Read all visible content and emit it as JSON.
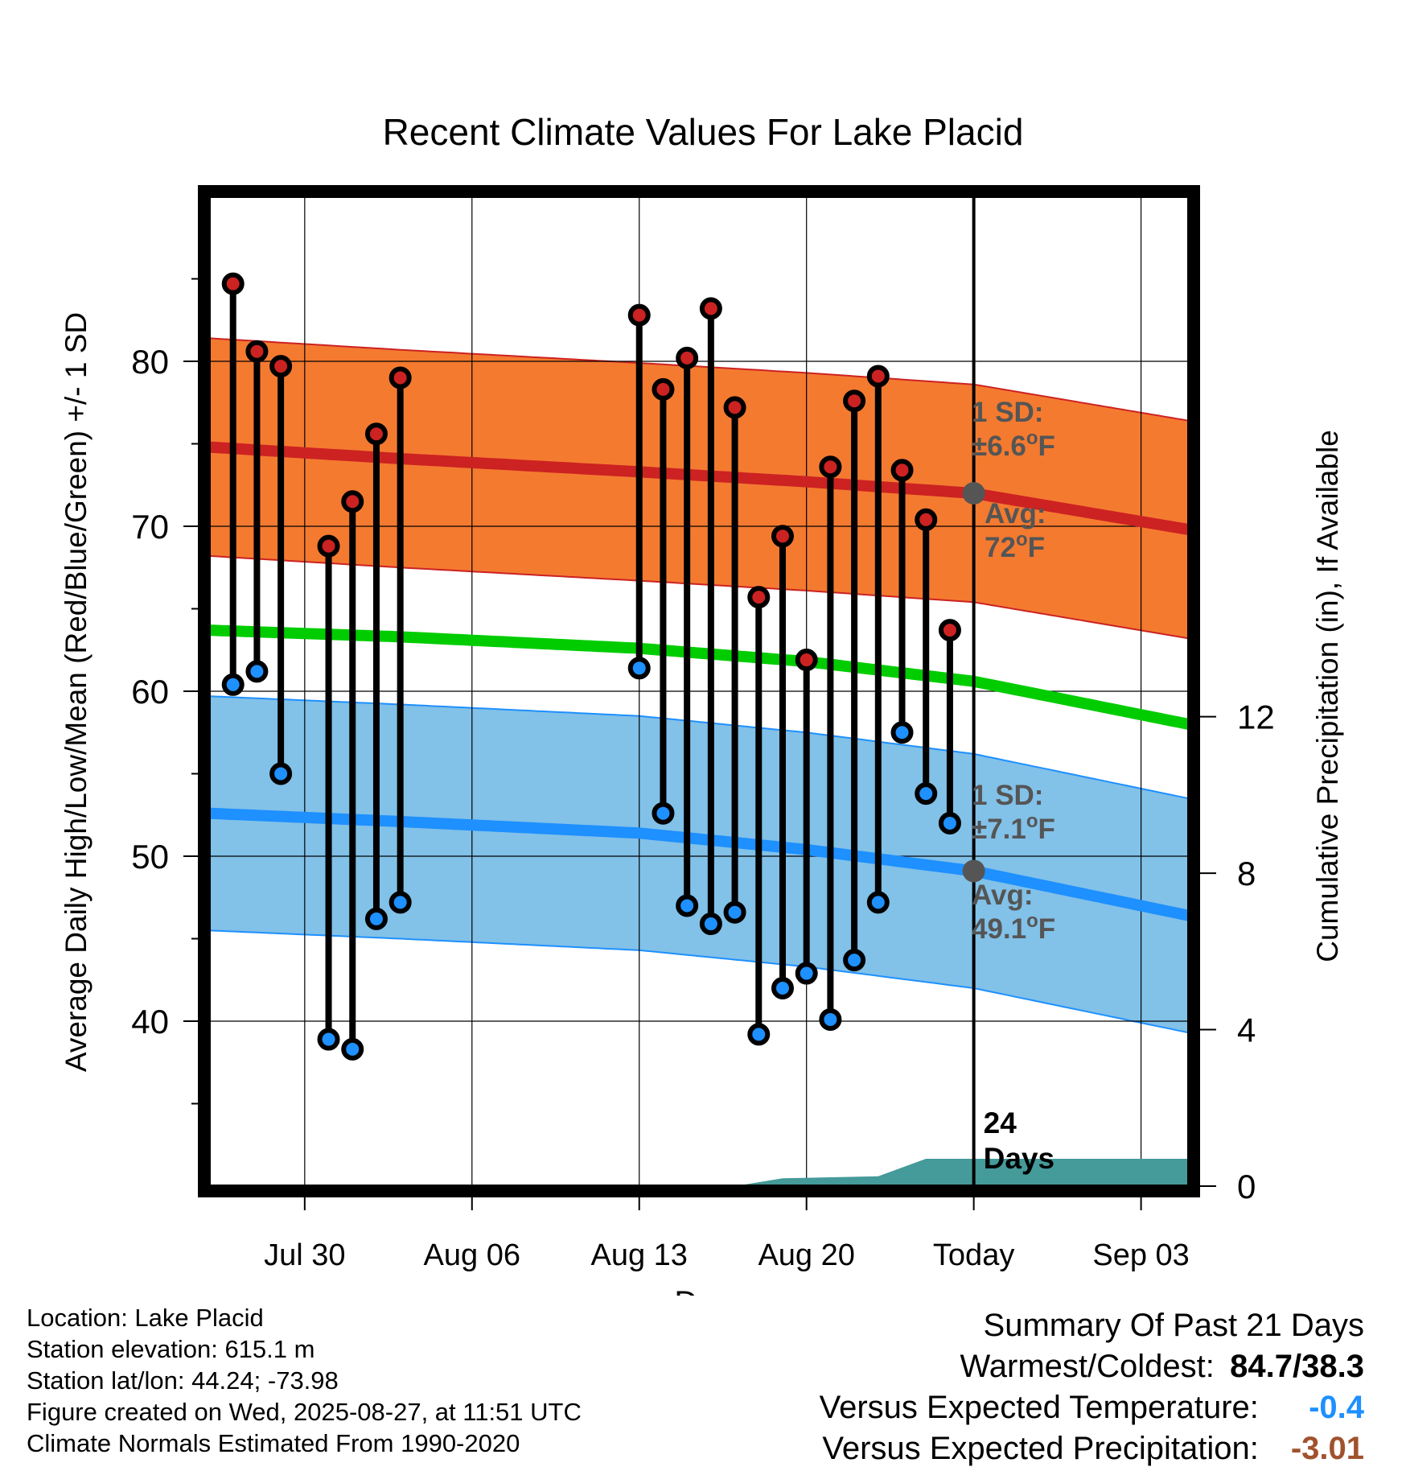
{
  "chart_data": {
    "type": "line",
    "title": "Recent Climate Values For Lake Placid",
    "xlabel": "Day",
    "ylabel": "Average Daily High/Low/Mean (Red/Blue/Green) +/- 1 SD",
    "ylabel_right": "Cumulative Precipitation (in), If Available",
    "ylim": [
      30,
      90
    ],
    "ylim_right": [
      0,
      25.3
    ],
    "xlim": [
      "2025-07-26",
      "2025-09-05"
    ],
    "x_ticks": [
      {
        "date": "2025-07-30",
        "label": "Jul 30"
      },
      {
        "date": "2025-08-06",
        "label": "Aug 06"
      },
      {
        "date": "2025-08-13",
        "label": "Aug 13"
      },
      {
        "date": "2025-08-20",
        "label": "Aug 20"
      },
      {
        "date": "2025-08-27",
        "label": "Today"
      },
      {
        "date": "2025-09-03",
        "label": "Sep 03"
      }
    ],
    "y_ticks": [
      40,
      50,
      60,
      70,
      80
    ],
    "y_ticks_right": [
      0,
      4,
      8,
      12
    ],
    "grid": true,
    "today": "2025-08-27",
    "days_label": "24\nDays",
    "observed": [
      {
        "date": "2025-07-27",
        "high": 84.7,
        "low": 60.4
      },
      {
        "date": "2025-07-28",
        "high": 80.6,
        "low": 61.2
      },
      {
        "date": "2025-07-29",
        "high": 79.7,
        "low": 55.0
      },
      {
        "date": "2025-07-31",
        "high": 68.8,
        "low": 38.9
      },
      {
        "date": "2025-08-01",
        "high": 71.5,
        "low": 38.3
      },
      {
        "date": "2025-08-02",
        "high": 75.6,
        "low": 46.2
      },
      {
        "date": "2025-08-03",
        "high": 79.0,
        "low": 47.2
      },
      {
        "date": "2025-08-13",
        "high": 82.8,
        "low": 61.4
      },
      {
        "date": "2025-08-14",
        "high": 78.3,
        "low": 52.6
      },
      {
        "date": "2025-08-15",
        "high": 80.2,
        "low": 47.0
      },
      {
        "date": "2025-08-16",
        "high": 83.2,
        "low": 45.9
      },
      {
        "date": "2025-08-17",
        "high": 77.2,
        "low": 46.6
      },
      {
        "date": "2025-08-18",
        "high": 65.7,
        "low": 39.2
      },
      {
        "date": "2025-08-19",
        "high": 69.4,
        "low": 42.0
      },
      {
        "date": "2025-08-20",
        "high": 61.9,
        "low": 42.9
      },
      {
        "date": "2025-08-21",
        "high": 73.6,
        "low": 40.1
      },
      {
        "date": "2025-08-22",
        "high": 77.6,
        "low": 43.7
      },
      {
        "date": "2025-08-23",
        "high": 79.1,
        "low": 47.2
      },
      {
        "date": "2025-08-24",
        "high": 73.4,
        "low": 57.5
      },
      {
        "date": "2025-08-25",
        "high": 70.4,
        "low": 53.8
      },
      {
        "date": "2025-08-26",
        "high": 63.7,
        "low": 52.0
      }
    ],
    "normals": {
      "dates": [
        "2025-07-26",
        "2025-08-03",
        "2025-08-13",
        "2025-08-20",
        "2025-08-27",
        "2025-09-05"
      ],
      "high_mean": [
        74.8,
        74.1,
        73.3,
        72.7,
        72.0,
        69.8
      ],
      "high_sd": 6.6,
      "low_mean": [
        52.6,
        52.1,
        51.4,
        50.4,
        49.1,
        46.4
      ],
      "low_sd": 7.1,
      "mean": [
        63.7,
        63.3,
        62.6,
        61.8,
        60.6,
        58.0
      ]
    },
    "precipitation": {
      "dates": [
        "2025-07-26",
        "2025-08-17",
        "2025-08-19",
        "2025-08-23",
        "2025-08-25",
        "2025-09-05"
      ],
      "cumulative": [
        0.0,
        0.0,
        0.2,
        0.25,
        0.7,
        0.7
      ]
    },
    "annotations": {
      "high_sd_label": "1 SD:",
      "high_sd_value": "±6.6",
      "high_avg_label": "Avg:",
      "high_avg_value": "72",
      "low_sd_label": "1 SD:",
      "low_sd_value": "±7.1",
      "low_avg_label": "Avg:",
      "low_avg_value": "49.1",
      "degree": "o",
      "unit": "F"
    },
    "colors": {
      "high_band": "#f47a30",
      "high_line": "#cc2222",
      "low_band": "#82c1e8",
      "low_line": "#1e90ff",
      "mean_line": "#00cc00",
      "high_marker": "#cc2222",
      "low_marker": "#1e90ff",
      "precip": "#459a9a",
      "annotation": "#555555"
    }
  },
  "info": {
    "location": "Location: Lake Placid",
    "elevation": "Station elevation: 615.1 m",
    "latlon": "Station lat/lon: 44.24; -73.98",
    "created": "Figure created on Wed, 2025-08-27, at 11:51 UTC",
    "normals_period": "Climate Normals Estimated From 1990-2020"
  },
  "summary": {
    "title": "Summary Of Past 21 Days",
    "warmest_coldest_label": "Warmest/Coldest:",
    "warmest_coldest_value": "84.7/38.3",
    "temp_label": "Versus Expected Temperature:",
    "temp_value": "-0.4",
    "temp_color": "#1e90ff",
    "precip_label": "Versus Expected Precipitation:",
    "precip_value": "-3.01",
    "precip_color": "#a0522d"
  }
}
